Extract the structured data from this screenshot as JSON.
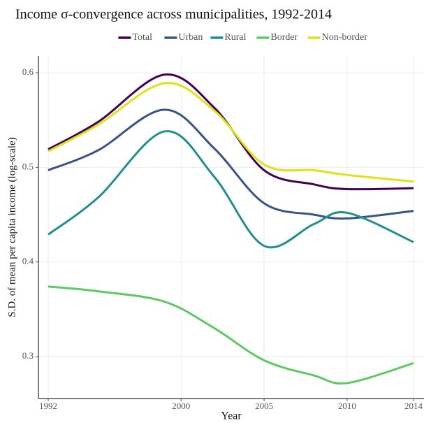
{
  "chart_data": {
    "type": "line",
    "title": "Income σ-convergence across municipalities, 1992-2014",
    "x_label": "Year",
    "y_label": "S.D. of mean per capita income (log-scale)",
    "x": [
      1992,
      1995,
      1999,
      2002,
      2005,
      2008,
      2010,
      2014
    ],
    "series": [
      {
        "name": "Total",
        "color": "#440154",
        "values": [
          0.519,
          0.548,
          0.598,
          0.563,
          0.497,
          0.482,
          0.477,
          0.478
        ]
      },
      {
        "name": "Urban",
        "color": "#3b528b",
        "values": [
          0.497,
          0.518,
          0.561,
          0.52,
          0.462,
          0.45,
          0.446,
          0.454
        ]
      },
      {
        "name": "Rural",
        "color": "#21908c",
        "values": [
          0.429,
          0.468,
          0.538,
          0.49,
          0.417,
          0.44,
          0.452,
          0.421
        ]
      },
      {
        "name": "Border",
        "color": "#5ec962",
        "values": [
          0.374,
          0.369,
          0.358,
          0.33,
          0.296,
          0.28,
          0.272,
          0.293
        ]
      },
      {
        "name": "Non-border",
        "color": "#dce319",
        "values": [
          0.517,
          0.545,
          0.589,
          0.56,
          0.503,
          0.497,
          0.492,
          0.485
        ]
      }
    ],
    "xlim": [
      1991.41,
      2014.63
    ],
    "ylim": [
      0.2556,
      0.6178
    ],
    "xticks": [
      1992,
      2000,
      2005,
      2010,
      2014
    ],
    "yticks": [
      0.3,
      0.4,
      0.5,
      0.6
    ],
    "grid": true,
    "legend": "top"
  }
}
